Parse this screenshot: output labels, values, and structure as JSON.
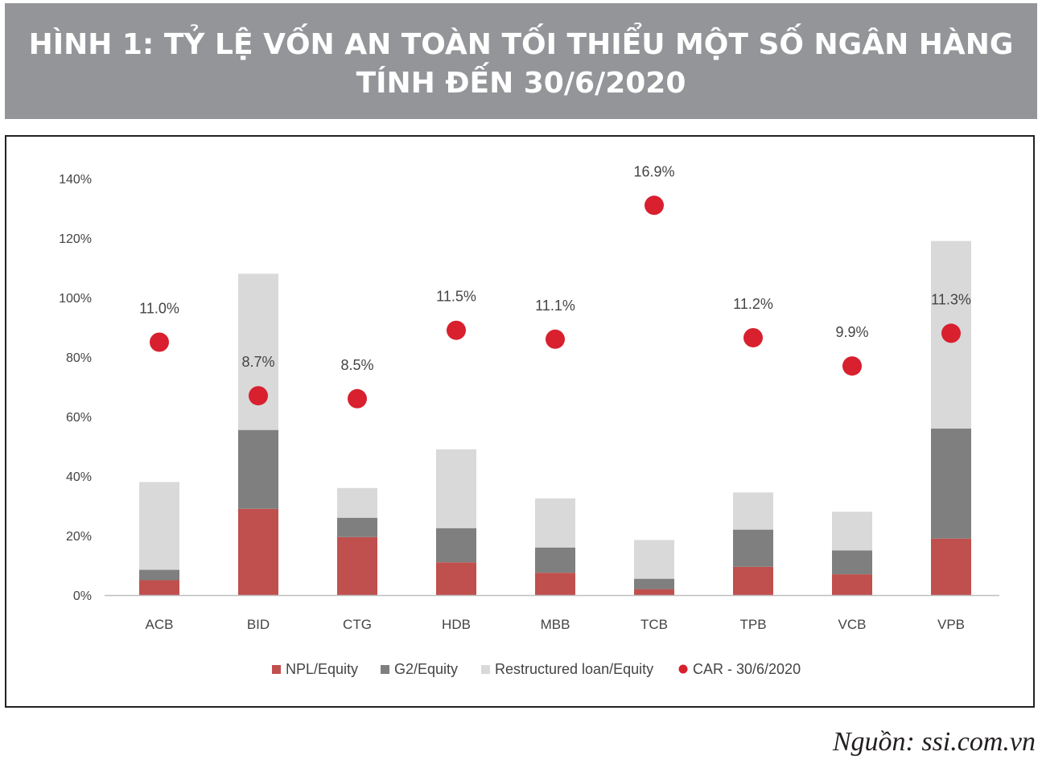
{
  "header": {
    "title_line1": "HÌNH 1:  TỶ LỆ VỐN AN TOÀN TỐI THIỂU MỘT SỐ NGÂN HÀNG",
    "title_line2": "TÍNH ĐẾN 30/6/2020"
  },
  "source": "Nguồn: ssi.com.vn",
  "colors": {
    "npl": "#c0504d",
    "g2": "#7f7f7f",
    "restructured": "#d9d9d9",
    "car": "#d8202f",
    "title_bg": "#939598"
  },
  "chart_data": {
    "type": "bar",
    "stacked": true,
    "categories": [
      "ACB",
      "BID",
      "CTG",
      "HDB",
      "MBB",
      "TCB",
      "TPB",
      "VCB",
      "VPB"
    ],
    "series": [
      {
        "name": "NPL/Equity",
        "values": [
          5,
          29,
          19.5,
          11,
          7.5,
          2,
          9.5,
          7,
          19
        ]
      },
      {
        "name": "G2/Equity",
        "values": [
          3.5,
          26.5,
          6.5,
          11.5,
          8.5,
          3.5,
          12.5,
          8,
          37
        ]
      },
      {
        "name": "Restructured loan/Equity",
        "values": [
          29.5,
          52.5,
          10,
          26.5,
          16.5,
          13,
          12.5,
          13,
          63
        ]
      }
    ],
    "car_series": {
      "name": "CAR - 30/6/2020",
      "labels": [
        "11.0%",
        "8.7%",
        "8.5%",
        "11.5%",
        "11.1%",
        "16.9%",
        "11.2%",
        "9.9%",
        "11.3%"
      ],
      "plot_values": [
        85,
        67,
        66,
        89,
        86,
        131,
        86.5,
        77,
        88
      ]
    },
    "yticks": [
      "0%",
      "20%",
      "40%",
      "60%",
      "80%",
      "100%",
      "120%",
      "140%"
    ],
    "ylim": [
      0,
      140
    ],
    "legend_position": "bottom",
    "grid": false
  }
}
